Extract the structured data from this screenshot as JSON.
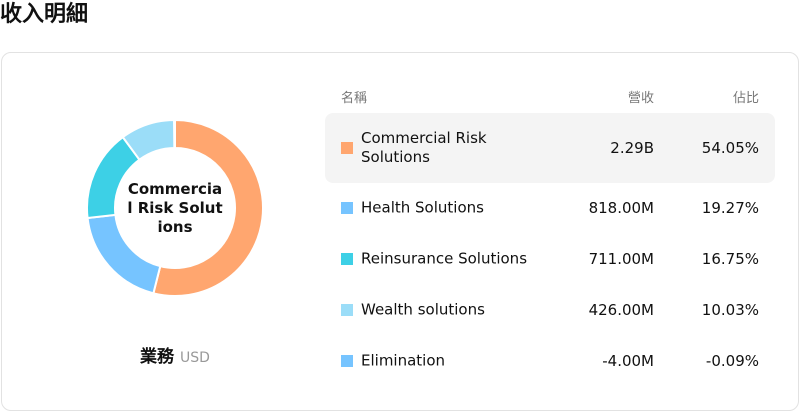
{
  "header": {
    "title": "收入明細"
  },
  "chart_data": {
    "type": "pie",
    "center_label": "Commercial Risk Solutions",
    "values": [
      54.05,
      19.27,
      16.75,
      10.03,
      -0.09
    ],
    "colors": [
      "#ffa66f",
      "#76c4ff",
      "#3dd0e6",
      "#9bddf8",
      "#76c4ff"
    ]
  },
  "caption": {
    "label": "業務",
    "unit": "USD"
  },
  "table": {
    "columns": [
      "名稱",
      "營收",
      "佔比"
    ],
    "rows": [
      [
        "Commercial Risk Solutions",
        "2.29B",
        "54.05%"
      ],
      [
        "Health Solutions",
        "818.00M",
        "19.27%"
      ],
      [
        "Reinsurance Solutions",
        "711.00M",
        "16.75%"
      ],
      [
        "Wealth solutions",
        "426.00M",
        "10.03%"
      ],
      [
        "Elimination",
        "-4.00M",
        "-0.09%"
      ]
    ]
  }
}
